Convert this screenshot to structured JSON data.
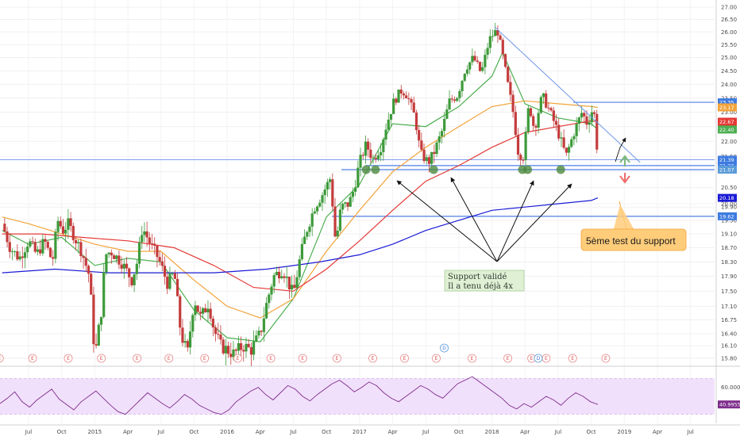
{
  "chart_data": {
    "type": "candlestick",
    "y_axis": {
      "ticks": [
        "27.00",
        "26.50",
        "26.00",
        "25.50",
        "25.00",
        "24.50",
        "24.00",
        "23.50",
        "23.00",
        "22.50",
        "22.00",
        "21.50",
        "21.00",
        "20.50",
        "20.00",
        "19.90",
        "19.50",
        "19.10",
        "18.70",
        "18.30",
        "17.90",
        "17.50",
        "17.10",
        "16.75",
        "16.40",
        "16.10",
        "15.80"
      ],
      "tick_values": [
        27.0,
        26.5,
        26.0,
        25.5,
        25.0,
        24.5,
        24.0,
        23.5,
        23.0,
        22.5,
        22.0,
        21.5,
        21.0,
        20.5,
        20.0,
        19.9,
        19.5,
        19.1,
        18.7,
        18.3,
        17.9,
        17.5,
        17.1,
        16.75,
        16.4,
        16.1,
        15.8
      ],
      "scale": "log",
      "range": [
        15.7,
        27.2
      ]
    },
    "price_labels": [
      {
        "text": "23.35",
        "value": 23.35,
        "color": "#3d7be0"
      },
      {
        "text": "23.17",
        "value": 23.17,
        "color": "#f2a33a"
      },
      {
        "text": "22.67",
        "value": 22.67,
        "color": "#e53935"
      },
      {
        "text": "22.40",
        "value": 22.4,
        "color": "#4caf50"
      },
      {
        "text": "21.39",
        "value": 21.39,
        "color": "#3d7be0"
      },
      {
        "text": "21.20",
        "value": 21.2,
        "color": "#3d7be0"
      },
      {
        "text": "21.08",
        "value": 21.08,
        "color": "#3d7be0"
      },
      {
        "text": "21.07",
        "value": 21.07,
        "color": "#5a9bd8"
      },
      {
        "text": "20.18",
        "value": 20.18,
        "color": "#1a1ad6"
      },
      {
        "text": "19.62",
        "value": 19.62,
        "color": "#3d7be0"
      }
    ],
    "x_axis": {
      "labels": [
        "Jul",
        "Oct",
        "2015",
        "Apr",
        "Jul",
        "Oct",
        "2016",
        "Apr",
        "Jul",
        "Oct",
        "2017",
        "Apr",
        "Jul",
        "Oct",
        "2018",
        "Apr",
        "Jul",
        "Oct",
        "2019",
        "Apr",
        "Jul"
      ],
      "tick_dates": [
        2014.5,
        2014.75,
        2015.0,
        2015.25,
        2015.5,
        2015.75,
        2016.0,
        2016.25,
        2016.5,
        2016.75,
        2017.0,
        2017.25,
        2017.5,
        2017.75,
        2018.0,
        2018.25,
        2018.5,
        2018.75,
        2019.0,
        2019.25,
        2019.5
      ]
    },
    "price_path": [
      [
        2014.3,
        19.4
      ],
      [
        2014.36,
        18.7
      ],
      [
        2014.43,
        18.4
      ],
      [
        2014.5,
        18.9
      ],
      [
        2014.56,
        18.5
      ],
      [
        2014.62,
        18.9
      ],
      [
        2014.68,
        18.3
      ],
      [
        2014.72,
        19.5
      ],
      [
        2014.76,
        19.2
      ],
      [
        2014.8,
        19.4
      ],
      [
        2014.86,
        18.9
      ],
      [
        2014.9,
        18.6
      ],
      [
        2014.96,
        17.9
      ],
      [
        2015.0,
        15.8
      ],
      [
        2015.05,
        17.0
      ],
      [
        2015.08,
        18.5
      ],
      [
        2015.12,
        18.6
      ],
      [
        2015.2,
        18.3
      ],
      [
        2015.28,
        17.8
      ],
      [
        2015.32,
        18.3
      ],
      [
        2015.36,
        19.3
      ],
      [
        2015.42,
        18.8
      ],
      [
        2015.48,
        18.4
      ],
      [
        2015.55,
        17.7
      ],
      [
        2015.6,
        18.0
      ],
      [
        2015.65,
        16.4
      ],
      [
        2015.7,
        15.9
      ],
      [
        2015.75,
        17.3
      ],
      [
        2015.8,
        16.8
      ],
      [
        2015.86,
        17.2
      ],
      [
        2015.9,
        16.5
      ],
      [
        2015.95,
        16.1
      ],
      [
        2016.0,
        16.0
      ],
      [
        2016.05,
        15.9
      ],
      [
        2016.12,
        16.1
      ],
      [
        2016.18,
        16.0
      ],
      [
        2016.25,
        16.4
      ],
      [
        2016.3,
        17.2
      ],
      [
        2016.35,
        17.9
      ],
      [
        2016.42,
        18.1
      ],
      [
        2016.5,
        17.4
      ],
      [
        2016.55,
        18.4
      ],
      [
        2016.6,
        19.2
      ],
      [
        2016.66,
        19.9
      ],
      [
        2016.72,
        20.3
      ],
      [
        2016.78,
        20.8
      ],
      [
        2016.82,
        18.8
      ],
      [
        2016.86,
        19.9
      ],
      [
        2016.92,
        20.0
      ],
      [
        2016.96,
        20.5
      ],
      [
        2017.0,
        21.3
      ],
      [
        2017.05,
        21.9
      ],
      [
        2017.1,
        21.4
      ],
      [
        2017.16,
        21.8
      ],
      [
        2017.2,
        22.5
      ],
      [
        2017.26,
        23.4
      ],
      [
        2017.32,
        23.8
      ],
      [
        2017.36,
        23.6
      ],
      [
        2017.42,
        22.8
      ],
      [
        2017.46,
        21.6
      ],
      [
        2017.52,
        21.3
      ],
      [
        2017.56,
        21.6
      ],
      [
        2017.62,
        22.3
      ],
      [
        2017.68,
        23.4
      ],
      [
        2017.74,
        23.6
      ],
      [
        2017.8,
        24.6
      ],
      [
        2017.86,
        25.0
      ],
      [
        2017.92,
        24.4
      ],
      [
        2017.98,
        25.7
      ],
      [
        2018.04,
        26.1
      ],
      [
        2018.08,
        25.1
      ],
      [
        2018.12,
        24.0
      ],
      [
        2018.16,
        23.0
      ],
      [
        2018.2,
        21.6
      ],
      [
        2018.24,
        21.5
      ],
      [
        2018.28,
        23.3
      ],
      [
        2018.32,
        22.4
      ],
      [
        2018.38,
        23.6
      ],
      [
        2018.44,
        23.0
      ],
      [
        2018.5,
        22.3
      ],
      [
        2018.56,
        21.5
      ],
      [
        2018.62,
        22.3
      ],
      [
        2018.68,
        23.0
      ],
      [
        2018.72,
        22.6
      ],
      [
        2018.76,
        23.1
      ],
      [
        2018.78,
        22.8
      ],
      [
        2018.8,
        21.3
      ]
    ],
    "moving_averages": [
      {
        "color": "#4caf50",
        "points": [
          [
            2014.3,
            19.2
          ],
          [
            2014.5,
            18.8
          ],
          [
            2014.75,
            19.0
          ],
          [
            2015.0,
            18.2
          ],
          [
            2015.25,
            18.4
          ],
          [
            2015.5,
            18.3
          ],
          [
            2015.75,
            17.0
          ],
          [
            2016.0,
            16.3
          ],
          [
            2016.25,
            16.2
          ],
          [
            2016.5,
            17.3
          ],
          [
            2016.75,
            19.6
          ],
          [
            2017.0,
            20.6
          ],
          [
            2017.25,
            22.6
          ],
          [
            2017.5,
            22.5
          ],
          [
            2017.75,
            23.2
          ],
          [
            2018.0,
            24.3
          ],
          [
            2018.08,
            25.2
          ],
          [
            2018.25,
            23.3
          ],
          [
            2018.5,
            22.8
          ],
          [
            2018.75,
            22.6
          ],
          [
            2018.8,
            22.4
          ]
        ]
      },
      {
        "color": "#f2a33a",
        "points": [
          [
            2014.3,
            19.6
          ],
          [
            2014.5,
            19.4
          ],
          [
            2014.75,
            19.1
          ],
          [
            2015.0,
            18.8
          ],
          [
            2015.25,
            18.6
          ],
          [
            2015.5,
            18.6
          ],
          [
            2015.75,
            17.8
          ],
          [
            2016.0,
            17.1
          ],
          [
            2016.25,
            16.8
          ],
          [
            2016.5,
            17.3
          ],
          [
            2016.75,
            18.6
          ],
          [
            2017.0,
            19.8
          ],
          [
            2017.25,
            21.0
          ],
          [
            2017.5,
            21.8
          ],
          [
            2017.75,
            22.5
          ],
          [
            2018.0,
            23.2
          ],
          [
            2018.25,
            23.4
          ],
          [
            2018.5,
            23.3
          ],
          [
            2018.75,
            23.2
          ],
          [
            2018.8,
            23.17
          ]
        ]
      },
      {
        "color": "#e53935",
        "points": [
          [
            2014.3,
            19.1
          ],
          [
            2014.6,
            19.1
          ],
          [
            2014.9,
            19.0
          ],
          [
            2015.25,
            18.9
          ],
          [
            2015.6,
            18.7
          ],
          [
            2015.9,
            18.2
          ],
          [
            2016.2,
            17.6
          ],
          [
            2016.5,
            17.5
          ],
          [
            2016.75,
            18.1
          ],
          [
            2017.0,
            18.9
          ],
          [
            2017.25,
            19.8
          ],
          [
            2017.5,
            20.7
          ],
          [
            2017.75,
            21.2
          ],
          [
            2018.0,
            21.8
          ],
          [
            2018.25,
            22.3
          ],
          [
            2018.5,
            22.5
          ],
          [
            2018.75,
            22.7
          ],
          [
            2018.8,
            22.67
          ]
        ]
      },
      {
        "color": "#1a1ad6",
        "points": [
          [
            2014.3,
            18.0
          ],
          [
            2014.7,
            18.1
          ],
          [
            2015.1,
            18.0
          ],
          [
            2015.5,
            18.0
          ],
          [
            2015.9,
            18.0
          ],
          [
            2016.3,
            18.1
          ],
          [
            2016.7,
            18.3
          ],
          [
            2017.0,
            18.5
          ],
          [
            2017.25,
            18.8
          ],
          [
            2017.5,
            19.2
          ],
          [
            2017.75,
            19.5
          ],
          [
            2018.0,
            19.8
          ],
          [
            2018.25,
            19.9
          ],
          [
            2018.5,
            20.0
          ],
          [
            2018.75,
            20.1
          ],
          [
            2018.8,
            20.18
          ]
        ]
      }
    ],
    "horizontal_lines": [
      23.35,
      21.39,
      21.2,
      21.07,
      19.62
    ],
    "trendline": [
      [
        2018.02,
        26.2
      ],
      [
        2019.12,
        21.3
      ]
    ],
    "earnings_markers": {
      "label": "E",
      "dates": [
        2014.28,
        2014.53,
        2014.8,
        2015.05,
        2015.32,
        2015.56,
        2015.83,
        2016.08,
        2016.33,
        2016.57,
        2016.83,
        2017.1,
        2017.34,
        2017.58,
        2017.85,
        2018.12,
        2018.3,
        2018.41,
        2018.61,
        2018.86
      ],
      "dividend_label": "D",
      "dividend_dates": [
        2017.64,
        2018.35
      ]
    },
    "support_touches": [
      2017.05,
      2017.12,
      2017.56,
      2018.23,
      2018.27,
      2018.52
    ],
    "annotations": {
      "green_note": [
        "Support validé",
        "Il a tenu déjà 4x"
      ],
      "callout": "5ème test du support"
    },
    "rsi": {
      "label": "60.0000",
      "value_label": "40.9955",
      "range": [
        20,
        80
      ],
      "levels": [
        30,
        70
      ],
      "values": [
        42,
        48,
        55,
        44,
        38,
        46,
        52,
        58,
        47,
        41,
        35,
        44,
        50,
        56,
        48,
        40,
        33,
        30,
        38,
        46,
        54,
        48,
        42,
        37,
        44,
        52,
        47,
        40,
        36,
        32,
        30,
        35,
        44,
        50,
        56,
        60,
        52,
        46,
        54,
        62,
        58,
        50,
        45,
        52,
        58,
        64,
        68,
        62,
        55,
        60,
        66,
        62,
        54,
        48,
        44,
        50,
        56,
        62,
        58,
        52,
        48,
        56,
        64,
        68,
        72,
        66,
        60,
        54,
        48,
        40,
        36,
        42,
        38,
        44,
        50,
        46,
        40,
        48,
        54,
        50,
        44,
        41
      ]
    }
  }
}
